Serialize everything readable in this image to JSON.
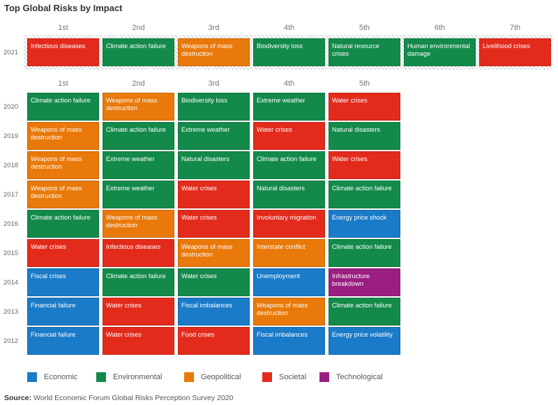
{
  "title": "Top Global Risks by Impact",
  "source_label": "Source:",
  "source_text": "World Economic Forum Global Risks Perception Survey 2020",
  "colors": {
    "Economic": "#1a7bc8",
    "Environmental": "#138a4a",
    "Geopolitical": "#e8790a",
    "Societal": "#e32b1c",
    "Technological": "#9a1f80"
  },
  "chart_data": {
    "type": "table",
    "legend": [
      "Economic",
      "Environmental",
      "Geopolitical",
      "Societal",
      "Technological"
    ],
    "top": {
      "ranks": [
        "1st",
        "2nd",
        "3rd",
        "4th",
        "5th",
        "6th",
        "7th"
      ],
      "rows": [
        {
          "year": "2021",
          "risks": [
            {
              "label": "Infectious diseases",
              "category": "Societal"
            },
            {
              "label": "Climate action failure",
              "category": "Environmental"
            },
            {
              "label": "Weapons of mass destruction",
              "category": "Geopolitical"
            },
            {
              "label": "Biodiversity loss",
              "category": "Environmental"
            },
            {
              "label": "Natural resource crises",
              "category": "Environmental"
            },
            {
              "label": "Human environmental damage",
              "category": "Environmental"
            },
            {
              "label": "Livelihood crises",
              "category": "Societal"
            }
          ]
        }
      ]
    },
    "bottom": {
      "ranks": [
        "1st",
        "2nd",
        "3rd",
        "4th",
        "5th"
      ],
      "rows": [
        {
          "year": "2020",
          "risks": [
            {
              "label": "Climate action failure",
              "category": "Environmental"
            },
            {
              "label": "Weapons of mass destruction",
              "category": "Geopolitical"
            },
            {
              "label": "Biodiversity loss",
              "category": "Environmental"
            },
            {
              "label": "Extreme weather",
              "category": "Environmental"
            },
            {
              "label": "Water crises",
              "category": "Societal"
            }
          ]
        },
        {
          "year": "2019",
          "risks": [
            {
              "label": "Weapons of mass destruction",
              "category": "Geopolitical"
            },
            {
              "label": "Climate action failure",
              "category": "Environmental"
            },
            {
              "label": "Extreme weather",
              "category": "Environmental"
            },
            {
              "label": "Water crises",
              "category": "Societal"
            },
            {
              "label": "Natural disasters",
              "category": "Environmental"
            }
          ]
        },
        {
          "year": "2018",
          "risks": [
            {
              "label": "Weapons of mass destruction",
              "category": "Geopolitical"
            },
            {
              "label": "Extreme weather",
              "category": "Environmental"
            },
            {
              "label": "Natural disasters",
              "category": "Environmental"
            },
            {
              "label": "Climate action failure",
              "category": "Environmental"
            },
            {
              "label": "Water crises",
              "category": "Societal"
            }
          ]
        },
        {
          "year": "2017",
          "risks": [
            {
              "label": "Weapons of mass destruction",
              "category": "Geopolitical"
            },
            {
              "label": "Extreme weather",
              "category": "Environmental"
            },
            {
              "label": "Water crises",
              "category": "Societal"
            },
            {
              "label": "Natural disasters",
              "category": "Environmental"
            },
            {
              "label": "Climate action failure",
              "category": "Environmental"
            }
          ]
        },
        {
          "year": "2016",
          "risks": [
            {
              "label": "Climate action failure",
              "category": "Environmental"
            },
            {
              "label": "Weapons of mass destruction",
              "category": "Geopolitical"
            },
            {
              "label": "Water crises",
              "category": "Societal"
            },
            {
              "label": "Involuntary migration",
              "category": "Societal"
            },
            {
              "label": "Energy price shock",
              "category": "Economic"
            }
          ]
        },
        {
          "year": "2015",
          "risks": [
            {
              "label": "Water crises",
              "category": "Societal"
            },
            {
              "label": "Infectious diseases",
              "category": "Societal"
            },
            {
              "label": "Weapons of mass destruction",
              "category": "Geopolitical"
            },
            {
              "label": "Interstate conflict",
              "category": "Geopolitical"
            },
            {
              "label": "Climate action failure",
              "category": "Environmental"
            }
          ]
        },
        {
          "year": "2014",
          "risks": [
            {
              "label": "Fiscal crises",
              "category": "Economic"
            },
            {
              "label": "Climate action failure",
              "category": "Environmental"
            },
            {
              "label": "Water crises",
              "category": "Environmental"
            },
            {
              "label": "Unemployment",
              "category": "Economic"
            },
            {
              "label": "Infrastructure breakdown",
              "category": "Technological"
            }
          ]
        },
        {
          "year": "2013",
          "risks": [
            {
              "label": "Financial failure",
              "category": "Economic"
            },
            {
              "label": "Water crises",
              "category": "Societal"
            },
            {
              "label": "Fiscal imbalances",
              "category": "Economic"
            },
            {
              "label": "Weapons of mass destruction",
              "category": "Geopolitical"
            },
            {
              "label": "Climate action failure",
              "category": "Environmental"
            }
          ]
        },
        {
          "year": "2012",
          "risks": [
            {
              "label": "Financial failure",
              "category": "Economic"
            },
            {
              "label": "Water crises",
              "category": "Societal"
            },
            {
              "label": "Food crises",
              "category": "Societal"
            },
            {
              "label": "Fiscal imbalances",
              "category": "Economic"
            },
            {
              "label": "Energy price volatility",
              "category": "Economic"
            }
          ]
        }
      ]
    }
  }
}
